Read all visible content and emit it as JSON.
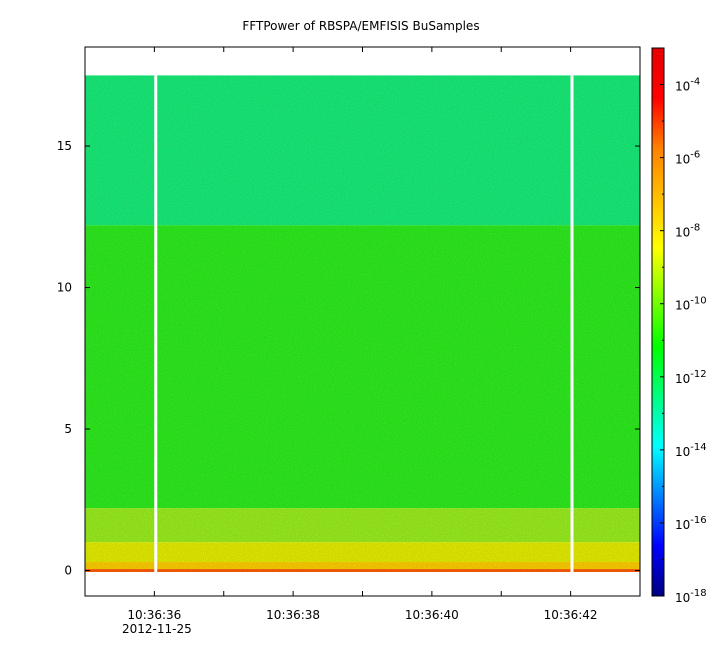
{
  "chart_data": {
    "type": "heatmap",
    "title": "FFTPower of RBSPA/EMFISIS  BuSamples",
    "xlabel": "",
    "ylabel": "",
    "x_axis": {
      "kind": "time",
      "date_label": "2012-11-25",
      "range": [
        "10:36:35.0",
        "10:36:43.0"
      ],
      "major_ticks": [
        {
          "time": "10:36:36",
          "label": "10:36:36"
        },
        {
          "time": "10:36:38",
          "label": "10:36:38"
        },
        {
          "time": "10:36:40",
          "label": "10:36:40"
        },
        {
          "time": "10:36:42",
          "label": "10:36:42"
        }
      ],
      "minor_ticks": [
        "10:36:37",
        "10:36:39",
        "10:36:41"
      ]
    },
    "y_axis": {
      "range": [
        -0.9,
        18.5
      ],
      "ticks": [
        0,
        5,
        10,
        15
      ],
      "tick_labels": [
        "0",
        "5",
        "10",
        "15"
      ],
      "data_top": 17.5
    },
    "colorbar": {
      "scale": "log",
      "range": [
        1e-18,
        0.001
      ],
      "ticks": [
        {
          "exp": -4,
          "base": "10",
          "sup": "-4"
        },
        {
          "exp": -6,
          "base": "10",
          "sup": "-6"
        },
        {
          "exp": -8,
          "base": "10",
          "sup": "-8"
        },
        {
          "exp": -10,
          "base": "10",
          "sup": "-10"
        },
        {
          "exp": -12,
          "base": "10",
          "sup": "-12"
        },
        {
          "exp": -14,
          "base": "10",
          "sup": "-14"
        },
        {
          "exp": -16,
          "base": "10",
          "sup": "-16"
        },
        {
          "exp": -18,
          "base": "10",
          "sup": "-18"
        }
      ],
      "colors": [
        "#00007f",
        "#0000ff",
        "#0080ff",
        "#00ffff",
        "#00ff80",
        "#00ff00",
        "#80ff00",
        "#ffff00",
        "#ffbf00",
        "#ff8000",
        "#ff0000",
        "#e60000"
      ]
    },
    "gaps": [
      "10:36:36.02",
      "10:36:42.02"
    ],
    "bands": [
      {
        "from": 12.2,
        "to": 17.5,
        "color": "#1aef7a",
        "level_exp": -11
      },
      {
        "from": 2.2,
        "to": 12.2,
        "color": "#33ee22",
        "level_exp": -10
      },
      {
        "from": 1.0,
        "to": 2.2,
        "color": "#9cf024",
        "level_exp": -9.3
      },
      {
        "from": 0.3,
        "to": 1.0,
        "color": "#e6f010",
        "level_exp": -8.3
      },
      {
        "from": 0.05,
        "to": 0.3,
        "color": "#ffd000",
        "level_exp": -7.5
      },
      {
        "from": -0.05,
        "to": 0.05,
        "color": "#ff5a00",
        "level_exp": -5
      }
    ]
  }
}
